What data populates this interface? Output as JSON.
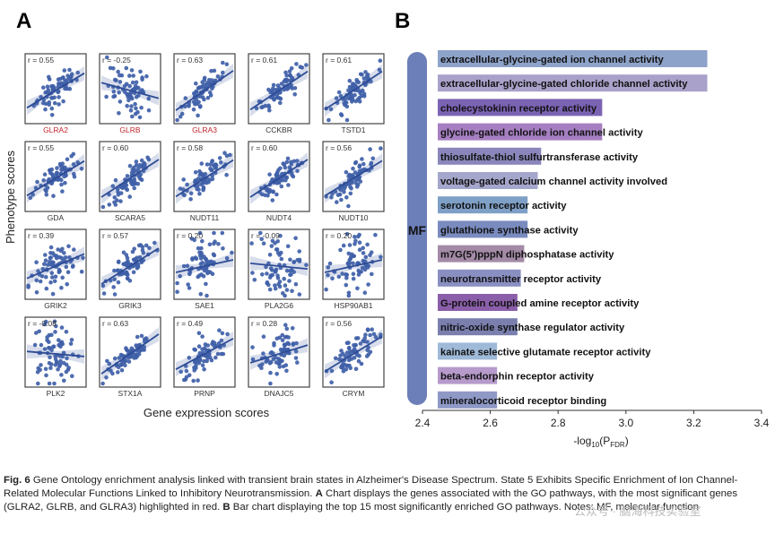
{
  "panel_a": {
    "letter": "A",
    "ylabel": "Phenotype scores",
    "xlabel": "Gene expression scores"
  },
  "panel_b": {
    "letter": "B",
    "xlabel_main": "-log",
    "xlabel_sub": "10",
    "xlabel_paren": "(P",
    "xlabel_sub2": "FDR",
    "xlabel_close": ")",
    "category_label": "MF"
  },
  "caption": {
    "fig_label": "Fig. 6",
    "part1": " Gene Ontology enrichment analysis linked with transient brain states in Alzheimer's Disease Spectrum. State 5 Exhibits Specific Enrichment of Ion Channel-Related Molecular Functions Linked to Inhibitory Neurotransmission. ",
    "a_label": "A",
    "part2": " Chart displays the genes associated with the GO pathways, with the most significant genes (GLRA2, GLRB, and GLRA3) highlighted in red. ",
    "b_label": "B",
    "part3": " Bar chart displaying the top 15 most significantly enriched GO pathways. Notes: MF, molecular function"
  },
  "watermark": "公众号 · 脑海科技实验室",
  "chart_data": [
    {
      "type": "scatter",
      "ylabel": "Phenotype scores",
      "xlabel": "Gene expression scores",
      "panels": [
        {
          "gene": "GLRA2",
          "r": "r = 0.55",
          "slope": 0.55,
          "highlight": true
        },
        {
          "gene": "GLRB",
          "r": "r = -0.25",
          "slope": -0.25,
          "highlight": true
        },
        {
          "gene": "GLRA3",
          "r": "r = 0.63",
          "slope": 0.63,
          "highlight": true
        },
        {
          "gene": "CCKBR",
          "r": "r = 0.61",
          "slope": 0.61,
          "highlight": false
        },
        {
          "gene": "TSTD1",
          "r": "r = 0.61",
          "slope": 0.61,
          "highlight": false
        },
        {
          "gene": "GDA",
          "r": "r = 0.55",
          "slope": 0.55,
          "highlight": false
        },
        {
          "gene": "SCARA5",
          "r": "r = 0.60",
          "slope": 0.6,
          "highlight": false
        },
        {
          "gene": "NUDT11",
          "r": "r = 0.58",
          "slope": 0.58,
          "highlight": false
        },
        {
          "gene": "NUDT4",
          "r": "r = 0.60",
          "slope": 0.6,
          "highlight": false
        },
        {
          "gene": "NUDT10",
          "r": "r = 0.56",
          "slope": 0.56,
          "highlight": false
        },
        {
          "gene": "GRIK2",
          "r": "r = 0.39",
          "slope": 0.39,
          "highlight": false
        },
        {
          "gene": "GRIK3",
          "r": "r = 0.57",
          "slope": 0.57,
          "highlight": false
        },
        {
          "gene": "SAE1",
          "r": "r = 0.20",
          "slope": 0.2,
          "highlight": false
        },
        {
          "gene": "PLA2G6",
          "r": "r = -0.09",
          "slope": -0.09,
          "highlight": false
        },
        {
          "gene": "HSP90AB1",
          "r": "r = 0.20",
          "slope": 0.2,
          "highlight": false
        },
        {
          "gene": "PLK2",
          "r": "r = -0.08",
          "slope": -0.08,
          "highlight": false
        },
        {
          "gene": "STX1A",
          "r": "r = 0.63",
          "slope": 0.63,
          "highlight": false
        },
        {
          "gene": "PRNP",
          "r": "r = 0.49",
          "slope": 0.49,
          "highlight": false
        },
        {
          "gene": "DNAJC5",
          "r": "r = 0.28",
          "slope": 0.28,
          "highlight": false
        },
        {
          "gene": "CRYM",
          "r": "r = 0.56",
          "slope": 0.56,
          "highlight": false
        }
      ],
      "colors": {
        "points": "#3f5fa8",
        "line": "#2e4c96",
        "band": "#c7cfe3",
        "highlight_label": "#c0262d",
        "label": "#333333"
      }
    },
    {
      "type": "bar",
      "orientation": "horizontal",
      "xlabel": "-log10(PFDR)",
      "xlim": [
        2.4,
        3.4
      ],
      "xticks": [
        "2.4",
        "2.6",
        "2.8",
        "3.0",
        "3.2",
        "3.4"
      ],
      "xtick_values": [
        2.4,
        2.6,
        2.8,
        3.0,
        3.2,
        3.4
      ],
      "category_group": "MF",
      "categories": [
        "extracellular-glycine-gated ion channel activity",
        "extracellular-glycine-gated chloride channel activity",
        "cholecystokinin receptor activity",
        "glycine-gated chloride ion channel activity",
        "thiosulfate-thiol sulfurtransferase activity",
        "voltage-gated calcium channel activity involved",
        "serotonin receptor activity",
        "glutathione synthase activity",
        "m7G(5')pppN diphosphatase activity",
        "neurotransmitter receptor activity",
        "G-protein coupled amine receptor activity",
        "nitric-oxide synthase regulator activity",
        "kainate selective glutamate receptor activity",
        "beta-endorphin receptor activity",
        "mineralocorticoid receptor binding"
      ],
      "values": [
        3.24,
        3.24,
        2.93,
        2.93,
        2.75,
        2.74,
        2.71,
        2.71,
        2.7,
        2.69,
        2.68,
        2.68,
        2.62,
        2.62,
        2.62
      ],
      "bar_colors": [
        "#8ea3c9",
        "#a9a1c9",
        "#7b63b4",
        "#a67fc2",
        "#8a86bb",
        "#a5a6cb",
        "#7fa0c6",
        "#7a8bbf",
        "#a48aa7",
        "#8a8fc2",
        "#8a5ea9",
        "#7a7fae",
        "#9fbad8",
        "#b69acb",
        "#8f99c6"
      ],
      "colors": {
        "category_bar": "#6c7fb8",
        "axis": "#333333"
      }
    }
  ]
}
